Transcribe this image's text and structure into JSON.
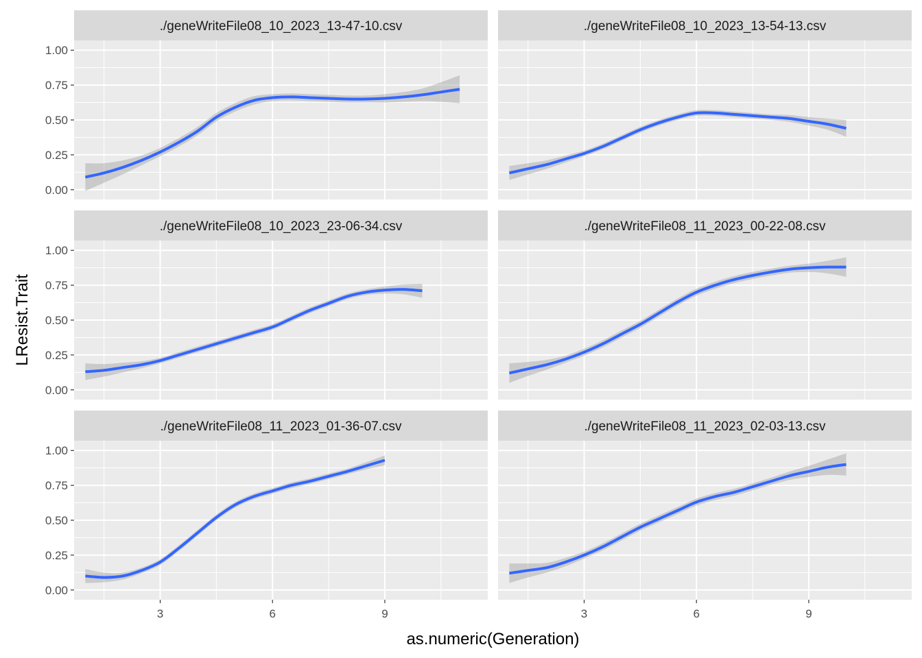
{
  "chart_data": {
    "type": "line",
    "xlabel": "as.numeric(Generation)",
    "ylabel": "LResist.Trait",
    "xlim": [
      0.7,
      11.75
    ],
    "ylim": [
      -0.07,
      1.07
    ],
    "x_ticks": [
      3,
      6,
      9
    ],
    "x_minor": [
      1.5,
      4.5,
      7.5,
      10.5
    ],
    "y_ticks": [
      0,
      0.25,
      0.5,
      0.75,
      1.0
    ],
    "y_tick_labels": [
      "0.00",
      "0.25",
      "0.50",
      "0.75",
      "1.00"
    ],
    "y_minor": [
      0.125,
      0.375,
      0.625,
      0.875
    ],
    "grid": true,
    "line_color": "#3366FF",
    "ribbon_color": "#999999",
    "panel_bg": "#EBEBEB",
    "strip_bg": "#D9D9D9",
    "panels": [
      {
        "title": "./geneWriteFile08_10_2023_13-47-10.csv",
        "x": [
          1,
          1.5,
          2,
          2.5,
          3,
          3.5,
          4,
          4.5,
          5,
          5.5,
          6,
          6.5,
          7,
          7.5,
          8,
          8.5,
          9,
          9.5,
          10,
          10.5,
          11
        ],
        "y": [
          0.09,
          0.12,
          0.16,
          0.21,
          0.27,
          0.34,
          0.42,
          0.52,
          0.59,
          0.64,
          0.66,
          0.665,
          0.66,
          0.655,
          0.65,
          0.65,
          0.655,
          0.665,
          0.68,
          0.7,
          0.72
        ],
        "ribbon_halfwidth": [
          0.1,
          0.07,
          0.05,
          0.035,
          0.03,
          0.03,
          0.03,
          0.03,
          0.03,
          0.03,
          0.025,
          0.025,
          0.025,
          0.025,
          0.025,
          0.025,
          0.03,
          0.035,
          0.045,
          0.07,
          0.1
        ]
      },
      {
        "title": "./geneWriteFile08_10_2023_13-54-13.csv",
        "x": [
          1,
          1.5,
          2,
          2.5,
          3,
          3.5,
          4,
          4.5,
          5,
          5.5,
          6,
          6.5,
          7,
          7.5,
          8,
          8.5,
          9,
          9.5,
          10
        ],
        "y": [
          0.12,
          0.15,
          0.18,
          0.22,
          0.26,
          0.31,
          0.37,
          0.43,
          0.48,
          0.52,
          0.55,
          0.55,
          0.54,
          0.53,
          0.52,
          0.51,
          0.49,
          0.47,
          0.44
        ],
        "ribbon_halfwidth": [
          0.05,
          0.04,
          0.03,
          0.025,
          0.02,
          0.02,
          0.02,
          0.02,
          0.02,
          0.02,
          0.02,
          0.02,
          0.02,
          0.02,
          0.02,
          0.025,
          0.03,
          0.04,
          0.06
        ]
      },
      {
        "title": "./geneWriteFile08_10_2023_23-06-34.csv",
        "x": [
          1,
          1.5,
          2,
          2.5,
          3,
          3.5,
          4,
          4.5,
          5,
          5.5,
          6,
          6.5,
          7,
          7.5,
          8,
          8.5,
          9,
          9.5,
          10
        ],
        "y": [
          0.13,
          0.14,
          0.16,
          0.18,
          0.21,
          0.25,
          0.29,
          0.33,
          0.37,
          0.41,
          0.45,
          0.51,
          0.57,
          0.62,
          0.67,
          0.7,
          0.715,
          0.72,
          0.71
        ],
        "ribbon_halfwidth": [
          0.06,
          0.045,
          0.035,
          0.025,
          0.02,
          0.02,
          0.02,
          0.02,
          0.02,
          0.02,
          0.02,
          0.02,
          0.02,
          0.02,
          0.02,
          0.02,
          0.025,
          0.035,
          0.05
        ]
      },
      {
        "title": "./geneWriteFile08_11_2023_00-22-08.csv",
        "x": [
          1,
          1.5,
          2,
          2.5,
          3,
          3.5,
          4,
          4.5,
          5,
          5.5,
          6,
          6.5,
          7,
          7.5,
          8,
          8.5,
          9,
          9.5,
          10
        ],
        "y": [
          0.12,
          0.15,
          0.18,
          0.22,
          0.27,
          0.33,
          0.4,
          0.47,
          0.55,
          0.63,
          0.7,
          0.75,
          0.79,
          0.82,
          0.845,
          0.865,
          0.875,
          0.88,
          0.88
        ],
        "ribbon_halfwidth": [
          0.07,
          0.05,
          0.035,
          0.025,
          0.025,
          0.025,
          0.025,
          0.025,
          0.025,
          0.025,
          0.025,
          0.025,
          0.025,
          0.025,
          0.025,
          0.025,
          0.03,
          0.045,
          0.07
        ]
      },
      {
        "title": "./geneWriteFile08_11_2023_01-36-07.csv",
        "x": [
          1,
          1.5,
          2,
          2.5,
          3,
          3.5,
          4,
          4.5,
          5,
          5.5,
          6,
          6.5,
          7,
          7.5,
          8,
          8.5,
          9
        ],
        "y": [
          0.1,
          0.09,
          0.1,
          0.14,
          0.2,
          0.3,
          0.41,
          0.52,
          0.61,
          0.67,
          0.71,
          0.75,
          0.78,
          0.815,
          0.85,
          0.89,
          0.93
        ],
        "ribbon_halfwidth": [
          0.05,
          0.035,
          0.025,
          0.02,
          0.02,
          0.02,
          0.02,
          0.02,
          0.02,
          0.02,
          0.02,
          0.02,
          0.02,
          0.02,
          0.02,
          0.025,
          0.035
        ]
      },
      {
        "title": "./geneWriteFile08_11_2023_02-03-13.csv",
        "x": [
          1,
          1.5,
          2,
          2.5,
          3,
          3.5,
          4,
          4.5,
          5,
          5.5,
          6,
          6.5,
          7,
          7.5,
          8,
          8.5,
          9,
          9.5,
          10
        ],
        "y": [
          0.12,
          0.14,
          0.16,
          0.2,
          0.25,
          0.31,
          0.38,
          0.45,
          0.51,
          0.57,
          0.63,
          0.67,
          0.7,
          0.74,
          0.78,
          0.82,
          0.85,
          0.88,
          0.9
        ],
        "ribbon_halfwidth": [
          0.07,
          0.05,
          0.035,
          0.03,
          0.025,
          0.025,
          0.025,
          0.025,
          0.025,
          0.025,
          0.025,
          0.025,
          0.025,
          0.025,
          0.025,
          0.03,
          0.04,
          0.055,
          0.08
        ]
      }
    ]
  }
}
